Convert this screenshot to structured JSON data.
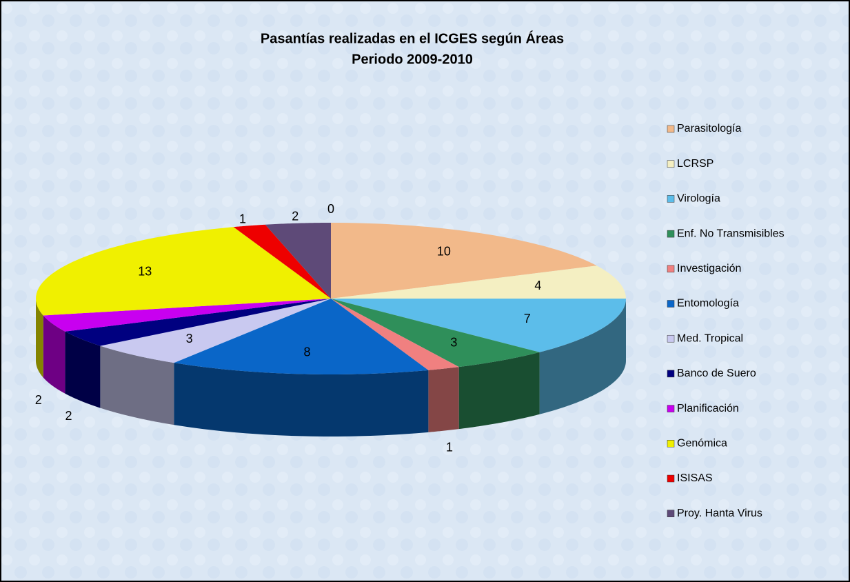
{
  "chart_data": {
    "type": "pie3d",
    "title": "Pasantías realizadas en el ICGES según Áreas",
    "subtitle": "Periodo 2009-2010",
    "categories": [
      "Parasitología",
      "LCRSP",
      "Virología",
      "Enf. No Transmisibles",
      "Investigación",
      "Entomología",
      "Med. Tropical",
      "Banco de Suero",
      "Planificación",
      "Genómica",
      "ISISAS",
      "Proy. Hanta Virus",
      null
    ],
    "values": [
      10,
      4,
      7,
      3,
      1,
      8,
      3,
      2,
      2,
      13,
      1,
      2,
      0
    ],
    "colors": [
      "#f2b98a",
      "#f4efc2",
      "#5cbdea",
      "#2f8f5a",
      "#f08080",
      "#0a66c8",
      "#c9c9f0",
      "#000080",
      "#c800f0",
      "#f0f000",
      "#ee0000",
      "#5e4a78",
      "#888888"
    ],
    "legend": "right"
  }
}
